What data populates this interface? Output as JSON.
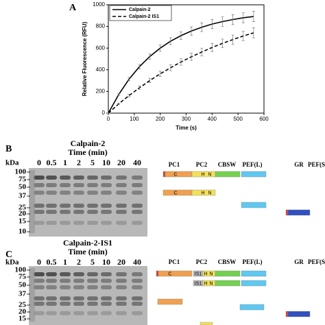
{
  "panel_labels": [
    "A",
    "B",
    "C"
  ],
  "chart_data": {
    "type": "line",
    "x_label": "Time (s)",
    "y_label": "Relative Fluorescence (RFU)",
    "x": [
      0,
      40,
      80,
      120,
      160,
      200,
      240,
      280,
      320,
      360,
      400,
      440,
      480,
      520,
      560
    ],
    "xlim": [
      0,
      600
    ],
    "xticks": [
      0,
      100,
      200,
      300,
      400,
      500,
      600
    ],
    "ylim": [
      0,
      1000
    ],
    "yticks": [
      0,
      200,
      400,
      600,
      800,
      1000
    ],
    "legend": "upper left",
    "series": [
      {
        "name": "Calpain-2",
        "color": "#000000",
        "dash": "solid",
        "values": [
          0,
          172,
          314,
          429,
          523,
          600,
          664,
          715,
          758,
          793,
          822,
          845,
          864,
          880,
          892
        ],
        "errors": [
          0,
          10,
          15,
          20,
          25,
          30,
          32,
          35,
          38,
          40,
          42,
          44,
          45,
          46,
          48
        ]
      },
      {
        "name": "Calpain-2 IS1",
        "color": "#000000",
        "dash": "dashed",
        "values": [
          0,
          85,
          163,
          234,
          301,
          363,
          419,
          472,
          520,
          564,
          606,
          644,
          679,
          712,
          741
        ],
        "errors": [
          0,
          8,
          12,
          16,
          20,
          24,
          27,
          30,
          33,
          36,
          38,
          40,
          42,
          44,
          46
        ]
      }
    ]
  },
  "gel_b": {
    "title": "Calpain-2",
    "subtitle": "Time (min)",
    "unit": "kDa",
    "lanes": [
      "0",
      "0.5",
      "1",
      "2",
      "5",
      "10",
      "20",
      "40"
    ],
    "markers": [
      "100",
      "75",
      "50",
      "37",
      "25",
      "20",
      "15",
      "10"
    ]
  },
  "domains_b": {
    "headers": [
      "PC1",
      "PC2",
      "CBSW",
      "PEF(L)",
      "GR",
      "PEF(S)"
    ],
    "rows": [
      {
        "pc1": "C",
        "h": "H",
        "n": "N"
      },
      {
        "pc1": "C",
        "h": "H",
        "n": "N"
      }
    ]
  },
  "gel_c": {
    "title": "Calpain-2-IS1",
    "subtitle": "Time (min)",
    "unit": "kDa",
    "lanes": [
      "0",
      "0.5",
      "1",
      "2",
      "5",
      "10",
      "20",
      "40"
    ],
    "markers": [
      "100",
      "75",
      "50",
      "37",
      "25",
      "20",
      "15"
    ]
  },
  "domains_c": {
    "headers": [
      "PC1",
      "PC2",
      "CBSW",
      "PEF(L)",
      "GR",
      "PEF(S)"
    ],
    "rows": [
      {
        "pc1": "C",
        "is1": "IS1",
        "h": "H",
        "n": "N"
      },
      {
        "is1": "IS1",
        "h": "H",
        "n": "N"
      }
    ]
  }
}
